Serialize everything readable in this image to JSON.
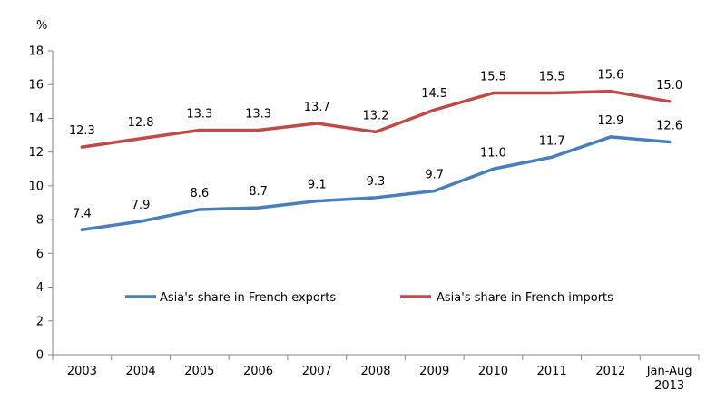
{
  "chart_data": {
    "type": "line",
    "unit_label": "%",
    "categories": [
      "2003",
      "2004",
      "2005",
      "2006",
      "2007",
      "2008",
      "2009",
      "2010",
      "2011",
      "2012",
      "Jan-Aug\n2013"
    ],
    "ylim": [
      0,
      18
    ],
    "yticks": [
      0,
      2,
      4,
      6,
      8,
      10,
      12,
      14,
      16,
      18
    ],
    "grid": false,
    "legend_position": "center",
    "series": [
      {
        "name": "Asia's share in French exports",
        "color": "#4a7ebb",
        "values": [
          7.4,
          7.9,
          8.6,
          8.7,
          9.1,
          9.3,
          9.7,
          11.0,
          11.7,
          12.9,
          12.6
        ],
        "labels": [
          "7.4",
          "7.9",
          "8.6",
          "8.7",
          "9.1",
          "9.3",
          "9.7",
          "11.0",
          "11.7",
          "12.9",
          "12.6"
        ]
      },
      {
        "name": "Asia's share in French imports",
        "color": "#be4b48",
        "values": [
          12.3,
          12.8,
          13.3,
          13.3,
          13.7,
          13.2,
          14.5,
          15.5,
          15.5,
          15.6,
          15.0
        ],
        "labels": [
          "12.3",
          "12.8",
          "13.3",
          "13.3",
          "13.7",
          "13.2",
          "14.5",
          "15.5",
          "15.5",
          "15.6",
          "15.0"
        ]
      }
    ]
  }
}
